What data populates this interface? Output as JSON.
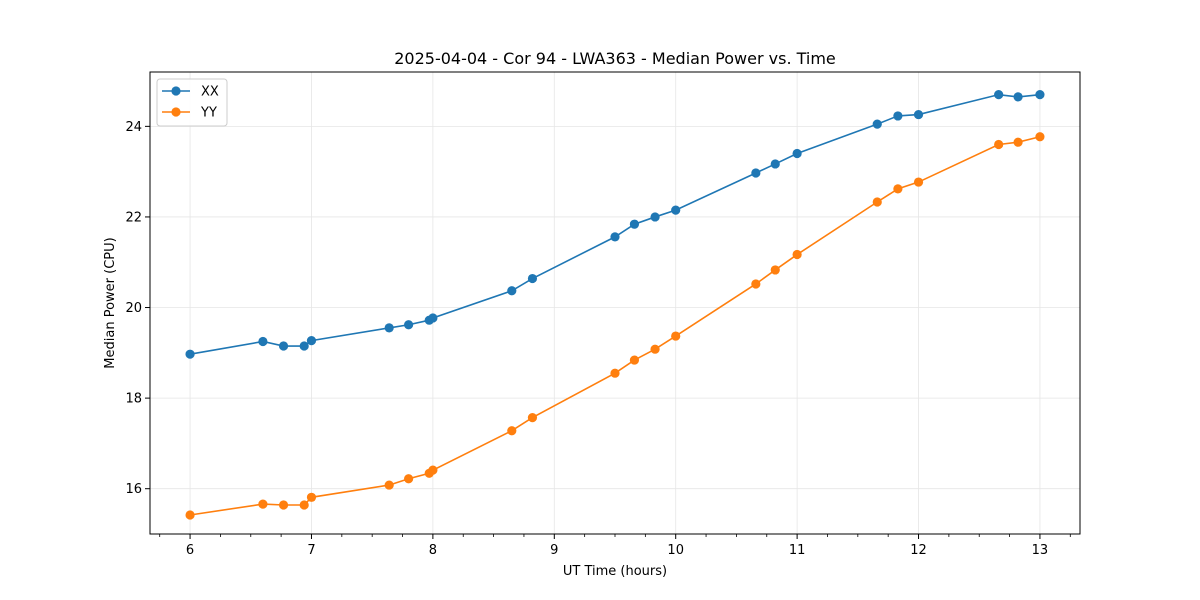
{
  "chart_data": {
    "type": "line",
    "title": "2025-04-04 - Cor 94 - LWA363 - Median Power vs. Time",
    "xlabel": "UT Time (hours)",
    "ylabel": "Median Power (CPU)",
    "xlim": [
      5.67,
      13.33
    ],
    "ylim": [
      15.0,
      25.2
    ],
    "xticks": [
      6,
      7,
      8,
      9,
      10,
      11,
      12,
      13
    ],
    "xtick_labels": [
      "6",
      "7",
      "8",
      "9",
      "10",
      "11",
      "12",
      "13"
    ],
    "yticks": [
      16,
      18,
      20,
      22,
      24
    ],
    "ytick_labels": [
      "16",
      "18",
      "20",
      "22",
      "24"
    ],
    "grid": true,
    "legend_position": "top-left",
    "x": [
      6.0,
      6.6,
      6.77,
      6.94,
      7.0,
      7.64,
      7.8,
      7.97,
      8.0,
      8.65,
      8.82,
      9.5,
      9.66,
      9.83,
      10.0,
      10.66,
      10.82,
      11.0,
      11.66,
      11.83,
      12.0,
      12.66,
      12.82,
      13.0
    ],
    "series": [
      {
        "name": "XX",
        "color": "#1f77b4",
        "values": [
          18.97,
          19.25,
          19.15,
          19.15,
          19.27,
          19.55,
          19.62,
          19.72,
          19.77,
          20.37,
          20.64,
          21.56,
          21.84,
          22.0,
          22.15,
          22.97,
          23.17,
          23.4,
          24.05,
          24.23,
          24.26,
          24.7,
          24.65,
          24.7
        ]
      },
      {
        "name": "YY",
        "color": "#ff7f0e",
        "values": [
          15.42,
          15.66,
          15.64,
          15.64,
          15.81,
          16.08,
          16.22,
          16.34,
          16.41,
          17.28,
          17.57,
          18.55,
          18.84,
          19.08,
          19.37,
          20.52,
          20.83,
          21.17,
          22.33,
          22.62,
          22.77,
          23.6,
          23.65,
          23.77
        ]
      }
    ]
  }
}
